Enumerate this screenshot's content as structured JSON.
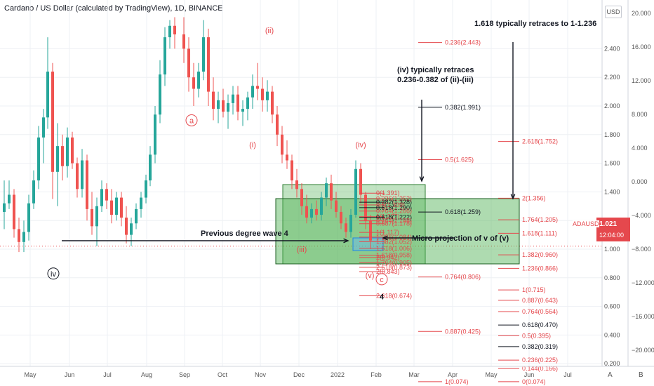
{
  "header": {
    "title": "Cardano / US Dollar (calculated by TradingView), 1D, BINANCE",
    "currency_badge": "USD",
    "symbol": "ADAUSD",
    "last_price": "1.021",
    "countdown": "12:04:00"
  },
  "footer": {
    "btn_a": "A",
    "btn_b": "B"
  },
  "chart_data": {
    "type": "candlestick",
    "symbol": "ADAUSD",
    "timeframe": "1D",
    "exchange": "BINANCE",
    "x_tick_labels": [
      "May",
      "Jun",
      "Jul",
      "Aug",
      "Sep",
      "Oct",
      "Nov",
      "Dec",
      "2022",
      "Feb",
      "Mar",
      "Apr",
      "May",
      "Jun",
      "Jul"
    ],
    "y_ticks_price": [
      "2.400",
      "2.200",
      "2.000",
      "1.800",
      "1.600",
      "1.400",
      "1.200",
      "1.000",
      "0.800",
      "0.600",
      "0.400",
      "0.200"
    ],
    "y_ticks_secondary": [
      "20.000",
      "16.000",
      "12.000",
      "8.000",
      "4.000",
      "0.000",
      "−4.000",
      "−8.000",
      "−12.000",
      "−16.000",
      "−20.000"
    ],
    "current_price": 1.021,
    "candle_colors": {
      "up": "#26a69a",
      "down": "#ef5350"
    },
    "candles": [
      {
        "x": 6,
        "o": 1.26,
        "h": 1.48,
        "l": 1.14,
        "c": 1.32
      },
      {
        "x": 13,
        "o": 1.32,
        "h": 1.48,
        "l": 1.28,
        "c": 1.38
      },
      {
        "x": 20,
        "o": 1.38,
        "h": 1.42,
        "l": 1.08,
        "c": 1.14
      },
      {
        "x": 27,
        "o": 1.14,
        "h": 1.22,
        "l": 0.98,
        "c": 1.05
      },
      {
        "x": 34,
        "o": 1.05,
        "h": 1.2,
        "l": 0.98,
        "c": 1.12
      },
      {
        "x": 41,
        "o": 1.12,
        "h": 1.38,
        "l": 1.06,
        "c": 1.32
      },
      {
        "x": 48,
        "o": 1.32,
        "h": 1.55,
        "l": 1.28,
        "c": 1.48
      },
      {
        "x": 55,
        "o": 1.48,
        "h": 1.86,
        "l": 1.42,
        "c": 1.78
      },
      {
        "x": 62,
        "o": 1.78,
        "h": 1.98,
        "l": 1.6,
        "c": 1.92
      },
      {
        "x": 68,
        "o": 1.92,
        "h": 2.48,
        "l": 1.84,
        "c": 2.24
      },
      {
        "x": 75,
        "o": 2.24,
        "h": 2.3,
        "l": 1.35,
        "c": 1.54
      },
      {
        "x": 82,
        "o": 1.54,
        "h": 1.88,
        "l": 1.3,
        "c": 1.72
      },
      {
        "x": 89,
        "o": 1.72,
        "h": 1.8,
        "l": 1.48,
        "c": 1.58
      },
      {
        "x": 96,
        "o": 1.58,
        "h": 1.85,
        "l": 1.5,
        "c": 1.78
      },
      {
        "x": 103,
        "o": 1.78,
        "h": 1.82,
        "l": 1.56,
        "c": 1.6
      },
      {
        "x": 110,
        "o": 1.6,
        "h": 1.64,
        "l": 1.36,
        "c": 1.42
      },
      {
        "x": 117,
        "o": 1.42,
        "h": 1.7,
        "l": 1.36,
        "c": 1.62
      },
      {
        "x": 124,
        "o": 1.62,
        "h": 1.66,
        "l": 1.2,
        "c": 1.28
      },
      {
        "x": 131,
        "o": 1.28,
        "h": 1.4,
        "l": 1.1,
        "c": 1.16
      },
      {
        "x": 138,
        "o": 1.16,
        "h": 1.36,
        "l": 1.02,
        "c": 1.3
      },
      {
        "x": 145,
        "o": 1.3,
        "h": 1.48,
        "l": 1.26,
        "c": 1.42
      },
      {
        "x": 152,
        "o": 1.42,
        "h": 1.46,
        "l": 1.28,
        "c": 1.34
      },
      {
        "x": 159,
        "o": 1.34,
        "h": 1.42,
        "l": 1.18,
        "c": 1.24
      },
      {
        "x": 166,
        "o": 1.24,
        "h": 1.4,
        "l": 1.2,
        "c": 1.36
      },
      {
        "x": 173,
        "o": 1.36,
        "h": 1.4,
        "l": 1.16,
        "c": 1.22
      },
      {
        "x": 180,
        "o": 1.22,
        "h": 1.3,
        "l": 1.04,
        "c": 1.1
      },
      {
        "x": 187,
        "o": 1.1,
        "h": 1.22,
        "l": 1.02,
        "c": 1.18
      },
      {
        "x": 194,
        "o": 1.18,
        "h": 1.32,
        "l": 1.14,
        "c": 1.28
      },
      {
        "x": 201,
        "o": 1.28,
        "h": 1.4,
        "l": 1.22,
        "c": 1.36
      },
      {
        "x": 208,
        "o": 1.36,
        "h": 1.52,
        "l": 1.32,
        "c": 1.48
      },
      {
        "x": 214,
        "o": 1.48,
        "h": 1.72,
        "l": 1.44,
        "c": 1.66
      },
      {
        "x": 221,
        "o": 1.66,
        "h": 2.0,
        "l": 1.6,
        "c": 1.94
      },
      {
        "x": 228,
        "o": 1.94,
        "h": 2.32,
        "l": 1.88,
        "c": 2.22
      },
      {
        "x": 235,
        "o": 2.22,
        "h": 2.55,
        "l": 2.14,
        "c": 2.48
      },
      {
        "x": 242,
        "o": 2.48,
        "h": 2.6,
        "l": 2.4,
        "c": 2.56
      },
      {
        "x": 249,
        "o": 2.56,
        "h": 2.62,
        "l": 2.4,
        "c": 2.5
      },
      {
        "x": 262,
        "o": 2.5,
        "h": 2.62,
        "l": 2.3,
        "c": 2.4
      },
      {
        "x": 269,
        "o": 2.4,
        "h": 2.48,
        "l": 2.1,
        "c": 2.2
      },
      {
        "x": 276,
        "o": 2.2,
        "h": 2.3,
        "l": 2.0,
        "c": 2.12
      },
      {
        "x": 283,
        "o": 2.12,
        "h": 2.3,
        "l": 2.06,
        "c": 2.24
      },
      {
        "x": 290,
        "o": 2.24,
        "h": 2.6,
        "l": 2.18,
        "c": 2.48
      },
      {
        "x": 297,
        "o": 2.48,
        "h": 2.54,
        "l": 2.0,
        "c": 2.1
      },
      {
        "x": 304,
        "o": 2.1,
        "h": 2.2,
        "l": 1.9,
        "c": 1.98
      },
      {
        "x": 311,
        "o": 1.98,
        "h": 2.1,
        "l": 1.88,
        "c": 2.04
      },
      {
        "x": 318,
        "o": 2.04,
        "h": 2.12,
        "l": 1.92,
        "c": 1.96
      },
      {
        "x": 325,
        "o": 1.96,
        "h": 2.08,
        "l": 1.84,
        "c": 2.02
      },
      {
        "x": 332,
        "o": 2.02,
        "h": 2.14,
        "l": 1.94,
        "c": 2.08
      },
      {
        "x": 339,
        "o": 2.08,
        "h": 2.14,
        "l": 1.9,
        "c": 1.96
      },
      {
        "x": 346,
        "o": 1.96,
        "h": 2.04,
        "l": 1.86,
        "c": 1.98
      },
      {
        "x": 353,
        "o": 1.98,
        "h": 2.1,
        "l": 1.9,
        "c": 2.06
      },
      {
        "x": 360,
        "o": 2.06,
        "h": 2.22,
        "l": 1.98,
        "c": 2.14
      },
      {
        "x": 367,
        "o": 2.14,
        "h": 2.3,
        "l": 2.04,
        "c": 2.12
      },
      {
        "x": 374,
        "o": 2.12,
        "h": 2.2,
        "l": 1.96,
        "c": 2.04
      },
      {
        "x": 381,
        "o": 2.04,
        "h": 2.18,
        "l": 1.96,
        "c": 2.1
      },
      {
        "x": 388,
        "o": 2.1,
        "h": 2.14,
        "l": 1.88,
        "c": 1.94
      },
      {
        "x": 395,
        "o": 1.94,
        "h": 2.0,
        "l": 1.72,
        "c": 1.8
      },
      {
        "x": 402,
        "o": 1.8,
        "h": 1.86,
        "l": 1.6,
        "c": 1.66
      },
      {
        "x": 409,
        "o": 1.66,
        "h": 1.76,
        "l": 1.56,
        "c": 1.62
      },
      {
        "x": 416,
        "o": 1.62,
        "h": 1.66,
        "l": 1.42,
        "c": 1.48
      },
      {
        "x": 423,
        "o": 1.48,
        "h": 1.56,
        "l": 1.36,
        "c": 1.42
      },
      {
        "x": 430,
        "o": 1.42,
        "h": 1.46,
        "l": 1.24,
        "c": 1.3
      },
      {
        "x": 437,
        "o": 1.3,
        "h": 1.38,
        "l": 1.18,
        "c": 1.22
      },
      {
        "x": 444,
        "o": 1.22,
        "h": 1.32,
        "l": 1.18,
        "c": 1.28
      },
      {
        "x": 451,
        "o": 1.28,
        "h": 1.34,
        "l": 1.2,
        "c": 1.24
      },
      {
        "x": 458,
        "o": 1.24,
        "h": 1.4,
        "l": 1.2,
        "c": 1.36
      },
      {
        "x": 465,
        "o": 1.36,
        "h": 1.5,
        "l": 1.3,
        "c": 1.46
      },
      {
        "x": 472,
        "o": 1.46,
        "h": 1.52,
        "l": 1.28,
        "c": 1.34
      },
      {
        "x": 479,
        "o": 1.34,
        "h": 1.4,
        "l": 1.22,
        "c": 1.26
      },
      {
        "x": 486,
        "o": 1.26,
        "h": 1.3,
        "l": 1.14,
        "c": 1.18
      },
      {
        "x": 493,
        "o": 1.18,
        "h": 1.22,
        "l": 1.08,
        "c": 1.12
      },
      {
        "x": 500,
        "o": 1.12,
        "h": 1.28,
        "l": 1.08,
        "c": 1.24
      },
      {
        "x": 507,
        "o": 1.24,
        "h": 1.62,
        "l": 1.22,
        "c": 1.56
      },
      {
        "x": 514,
        "o": 1.56,
        "h": 1.6,
        "l": 1.32,
        "c": 1.38
      },
      {
        "x": 521,
        "o": 1.38,
        "h": 1.4,
        "l": 1.14,
        "c": 1.2
      },
      {
        "x": 528,
        "o": 1.2,
        "h": 1.24,
        "l": 1.0,
        "c": 1.06
      }
    ],
    "wave_labels": [
      {
        "text": "(ii)",
        "price": 2.51,
        "x": 384,
        "color": "#e5484d"
      },
      {
        "text": "a",
        "price": 1.88,
        "x": 273,
        "color": "#e5484d",
        "circled": true
      },
      {
        "text": "(i)",
        "price": 1.71,
        "x": 360,
        "color": "#e5484d"
      },
      {
        "text": "(iv)",
        "price": 1.71,
        "x": 514,
        "color": "#e5484d"
      },
      {
        "text": "(iii)",
        "price": 0.98,
        "x": 430,
        "color": "#e5484d"
      },
      {
        "text": "(v)",
        "price": 0.8,
        "x": 527,
        "color": "#e5484d"
      },
      {
        "text": "c",
        "price": 0.77,
        "x": 544,
        "color": "#e5484d",
        "circled": true
      },
      {
        "text": "iv",
        "price": 0.81,
        "x": 76,
        "color": "#131722",
        "circled": true
      },
      {
        "text": "4",
        "price": 0.65,
        "x": 544,
        "color": "#131722"
      }
    ],
    "fib_set_left": [
      {
        "label": "0(1.391)",
        "price": 1.391
      },
      {
        "label": "0.236(1.352)",
        "price": 1.352
      },
      {
        "label": "0.382(1.328)",
        "price": 1.328
      },
      {
        "label": "0.5(1.309)",
        "price": 1.309
      },
      {
        "label": "0.618(1.290)",
        "price": 1.29
      },
      {
        "label": "0.764(1.266)",
        "price": 1.266
      },
      {
        "label": "1(1.227)",
        "price": 1.227
      },
      {
        "label": "0.618(1.222)",
        "price": 1.222
      },
      {
        "label": "0.764(1.198)",
        "price": 1.198
      },
      {
        "label": "0.887(1.178)",
        "price": 1.178
      },
      {
        "label": "1(1.117)",
        "price": 1.117
      },
      {
        "label": "1.236(1.084)",
        "price": 1.084
      },
      {
        "label": "1.382(1.052)",
        "price": 1.052
      },
      {
        "label": "1.618(1.006)",
        "price": 1.006
      },
      {
        "label": "2(0.942)",
        "price": 0.942
      },
      {
        "label": "1.618(0.958)",
        "price": 0.958
      },
      {
        "label": "1.764(0.905)",
        "price": 0.905
      },
      {
        "label": "2.618(0.873)",
        "price": 0.873
      },
      {
        "label": "2(0.843)",
        "price": 0.843
      },
      {
        "label": "2.618(0.674)",
        "price": 0.674
      }
    ],
    "fib_set_middle": [
      {
        "label": "0.236(2.443)",
        "price": 2.443
      },
      {
        "label": "0.382(1.991)",
        "price": 1.991
      },
      {
        "label": "0.5(1.625)",
        "price": 1.625
      },
      {
        "label": "0.618(1.259)",
        "price": 1.259
      },
      {
        "label": "0.764(0.806)",
        "price": 0.806
      },
      {
        "label": "0.887(0.425)",
        "price": 0.425
      },
      {
        "label": "1(0.074)",
        "price": 0.074
      }
    ],
    "fib_set_right": [
      {
        "label": "2.618(1.752)",
        "price": 1.752
      },
      {
        "label": "2(1.356)",
        "price": 1.356
      },
      {
        "label": "1.764(1.205)",
        "price": 1.205
      },
      {
        "label": "1.618(1.111)",
        "price": 1.111
      },
      {
        "label": "1.382(0.960)",
        "price": 0.96
      },
      {
        "label": "1.236(0.866)",
        "price": 0.866
      },
      {
        "label": "1(0.715)",
        "price": 0.715
      },
      {
        "label": "0.887(0.643)",
        "price": 0.643
      },
      {
        "label": "0.764(0.564)",
        "price": 0.564
      },
      {
        "label": "0.618(0.470)",
        "price": 0.47
      },
      {
        "label": "0.5(0.395)",
        "price": 0.395
      },
      {
        "label": "0.382(0.319)",
        "price": 0.319
      },
      {
        "label": "0.236(0.225)",
        "price": 0.225
      },
      {
        "label": "0.144(0.166)",
        "price": 0.166
      },
      {
        "label": "0(0.074)",
        "price": 0.074
      }
    ],
    "annotations": [
      {
        "text": "1.618 typically retraces to 1-1.236"
      },
      {
        "text": "(iv) typically retraces"
      },
      {
        "text": "0.236-0.382 of (ii)-(iii)"
      },
      {
        "text": "Previous degree wave 4"
      },
      {
        "text": "Micro projection of v of (v)"
      }
    ]
  }
}
